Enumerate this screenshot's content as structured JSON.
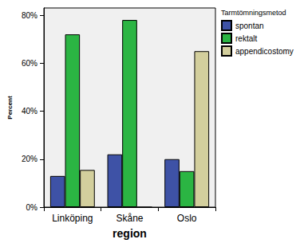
{
  "chart_data": {
    "type": "bar",
    "x_label": "region",
    "y_label": "Percent",
    "legend_title": "Tarmtömningsmetod",
    "categories": [
      "Linköping",
      "Skåne",
      "Oslo"
    ],
    "series": [
      {
        "name": "spontan",
        "color": "#3e52a6",
        "values": [
          13,
          22,
          20
        ]
      },
      {
        "name": "rektalt",
        "color": "#2bb543",
        "values": [
          72,
          78,
          15
        ]
      },
      {
        "name": "appendicostomy",
        "color": "#d3cf9d",
        "values": [
          15.5,
          0,
          65
        ]
      }
    ],
    "ylim": [
      0,
      83
    ],
    "yticks": [
      {
        "value": 0,
        "label": "0%"
      },
      {
        "value": 20,
        "label": "20%"
      },
      {
        "value": 40,
        "label": "40%"
      },
      {
        "value": 60,
        "label": "60%"
      },
      {
        "value": 80,
        "label": "80%"
      }
    ],
    "grid": false,
    "legend": "right"
  }
}
